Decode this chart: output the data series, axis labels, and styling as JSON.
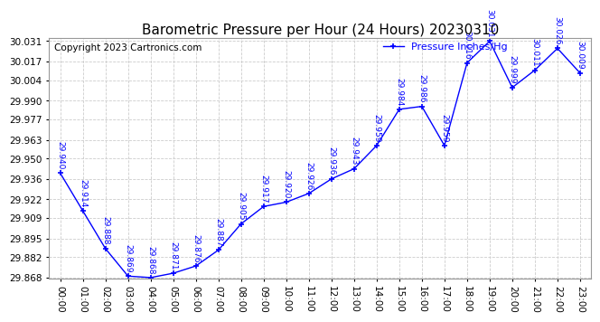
{
  "title": "Barometric Pressure per Hour (24 Hours) 20230310",
  "legend_label": "Pressure Inches/Hg",
  "copyright": "Copyright 2023 Cartronics.com",
  "hours": [
    0,
    1,
    2,
    3,
    4,
    5,
    6,
    7,
    8,
    9,
    10,
    11,
    12,
    13,
    14,
    15,
    16,
    17,
    18,
    19,
    20,
    21,
    22,
    23
  ],
  "x_labels": [
    "00:00",
    "01:00",
    "02:00",
    "03:00",
    "04:00",
    "05:00",
    "06:00",
    "07:00",
    "08:00",
    "09:00",
    "10:00",
    "11:00",
    "12:00",
    "13:00",
    "14:00",
    "15:00",
    "16:00",
    "17:00",
    "18:00",
    "19:00",
    "20:00",
    "21:00",
    "22:00",
    "23:00"
  ],
  "values": [
    29.94,
    29.914,
    29.888,
    29.869,
    29.868,
    29.871,
    29.876,
    29.887,
    29.905,
    29.917,
    29.92,
    29.926,
    29.936,
    29.943,
    29.959,
    29.984,
    29.986,
    29.959,
    30.016,
    30.031,
    29.999,
    30.011,
    30.026,
    30.009
  ],
  "line_color": "blue",
  "marker": "+",
  "marker_color": "blue",
  "grid_color": "#cccccc",
  "bg_color": "white",
  "ylim_min": 29.868,
  "ylim_max": 30.031,
  "yticks": [
    29.868,
    29.882,
    29.895,
    29.909,
    29.922,
    29.936,
    29.95,
    29.963,
    29.977,
    29.99,
    30.004,
    30.017,
    30.031
  ],
  "title_fontsize": 11,
  "label_fontsize": 7.5,
  "annotation_fontsize": 6.5,
  "legend_fontsize": 8,
  "copyright_fontsize": 7.5
}
